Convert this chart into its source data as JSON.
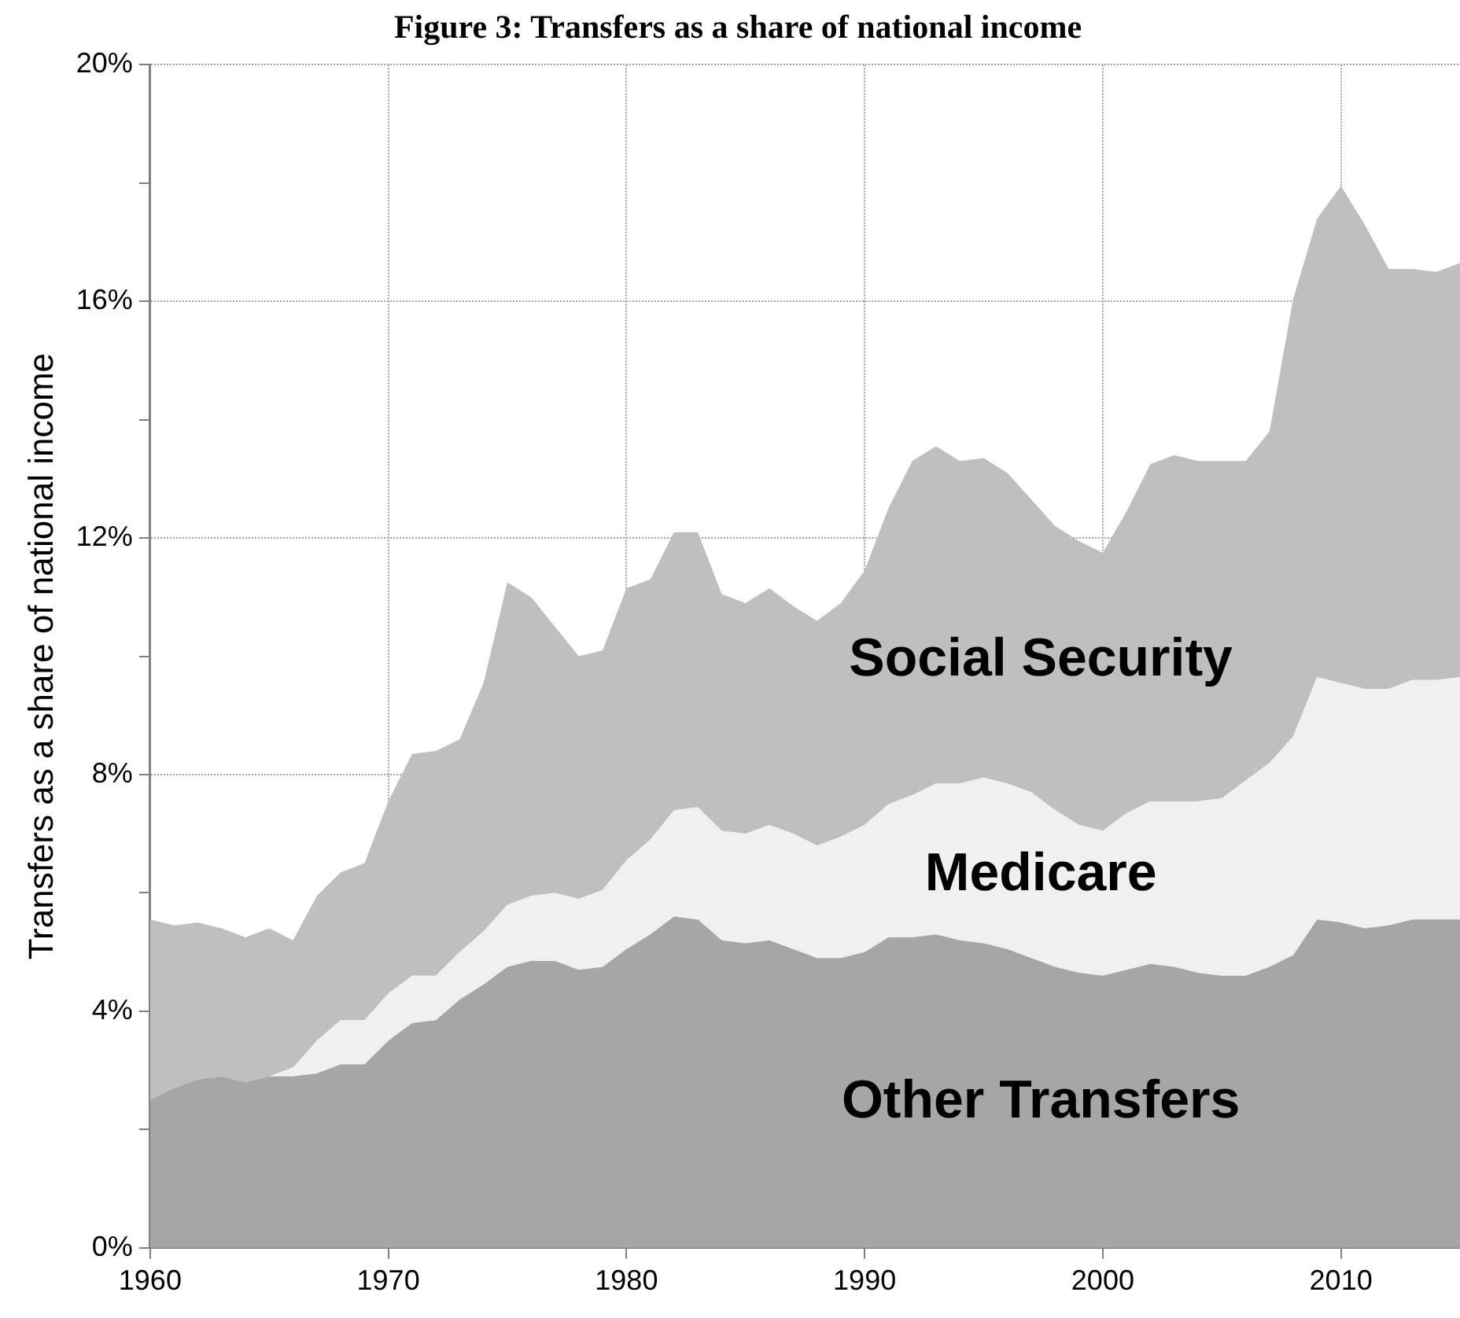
{
  "chart_data": {
    "type": "area",
    "title": "Figure 3: Transfers as a share of national income",
    "ylabel": "Transfers as a share of national income",
    "x": [
      1960,
      1961,
      1962,
      1963,
      1964,
      1965,
      1966,
      1967,
      1968,
      1969,
      1970,
      1971,
      1972,
      1973,
      1974,
      1975,
      1976,
      1977,
      1978,
      1979,
      1980,
      1981,
      1982,
      1983,
      1984,
      1985,
      1986,
      1987,
      1988,
      1989,
      1990,
      1991,
      1992,
      1993,
      1994,
      1995,
      1996,
      1997,
      1998,
      1999,
      2000,
      2001,
      2002,
      2003,
      2004,
      2005,
      2006,
      2007,
      2008,
      2009,
      2010,
      2011,
      2012,
      2013,
      2014,
      2015
    ],
    "stacked": true,
    "series": [
      {
        "name": "Other Transfers",
        "color": "#a6a6a6",
        "values": [
          2.5,
          2.7,
          2.85,
          2.9,
          2.8,
          2.9,
          2.9,
          2.95,
          3.1,
          3.1,
          3.5,
          3.8,
          3.85,
          4.2,
          4.45,
          4.75,
          4.85,
          4.85,
          4.7,
          4.75,
          5.05,
          5.3,
          5.6,
          5.55,
          5.2,
          5.15,
          5.2,
          5.05,
          4.9,
          4.9,
          5.0,
          5.25,
          5.25,
          5.3,
          5.2,
          5.15,
          5.05,
          4.9,
          4.75,
          4.65,
          4.6,
          4.7,
          4.8,
          4.75,
          4.65,
          4.6,
          4.6,
          4.75,
          4.95,
          5.55,
          5.5,
          5.4,
          5.45,
          5.55,
          5.55,
          5.55
        ]
      },
      {
        "name": "Medicare",
        "color": "#f0f0f0",
        "values": [
          0,
          0,
          0,
          0,
          0,
          0,
          0.15,
          0.55,
          0.75,
          0.75,
          0.8,
          0.8,
          0.75,
          0.8,
          0.9,
          1.05,
          1.1,
          1.15,
          1.2,
          1.3,
          1.5,
          1.6,
          1.8,
          1.9,
          1.85,
          1.85,
          1.95,
          1.95,
          1.9,
          2.05,
          2.15,
          2.25,
          2.4,
          2.55,
          2.65,
          2.8,
          2.8,
          2.8,
          2.65,
          2.5,
          2.45,
          2.65,
          2.75,
          2.8,
          2.9,
          3.0,
          3.3,
          3.45,
          3.7,
          4.1,
          4.05,
          4.05,
          4.0,
          4.05,
          4.05,
          4.1
        ]
      },
      {
        "name": "Social Security",
        "color": "#bfbfbf",
        "values": [
          3.05,
          2.75,
          2.65,
          2.5,
          2.45,
          2.5,
          2.15,
          2.45,
          2.5,
          2.65,
          3.25,
          3.75,
          3.8,
          3.6,
          4.2,
          5.45,
          5.05,
          4.5,
          4.1,
          4.05,
          4.6,
          4.4,
          4.7,
          4.65,
          4.0,
          3.9,
          4.0,
          3.85,
          3.8,
          3.95,
          4.3,
          5.0,
          5.65,
          5.7,
          5.45,
          5.4,
          5.25,
          4.95,
          4.8,
          4.8,
          4.7,
          5.1,
          5.7,
          5.85,
          5.75,
          5.7,
          5.4,
          5.6,
          7.4,
          7.75,
          8.4,
          7.85,
          7.1,
          6.95,
          6.9,
          7.0
        ]
      }
    ],
    "xlim": [
      1960,
      2015
    ],
    "xticks": [
      1960,
      1970,
      1980,
      1990,
      2000,
      2010
    ],
    "ylim": [
      0,
      20
    ],
    "yticks": [
      {
        "value": 0,
        "label": "0%"
      },
      {
        "value": 2,
        "label": null
      },
      {
        "value": 4,
        "label": "4%"
      },
      {
        "value": 6,
        "label": null
      },
      {
        "value": 8,
        "label": "8%"
      },
      {
        "value": 10,
        "label": null
      },
      {
        "value": 12,
        "label": "12%"
      },
      {
        "value": 14,
        "label": null
      },
      {
        "value": 16,
        "label": "16%"
      },
      {
        "value": 18,
        "label": null
      },
      {
        "value": 20,
        "label": "20%"
      }
    ],
    "grid": true,
    "legend": false
  }
}
